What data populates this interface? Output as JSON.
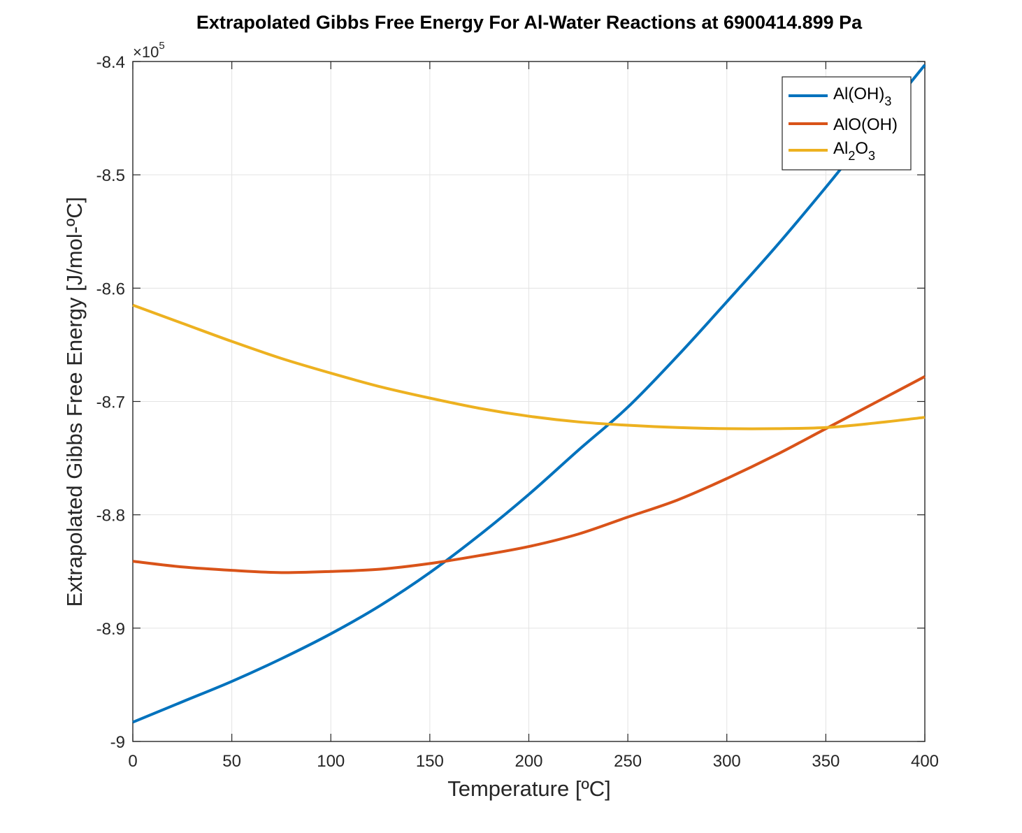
{
  "chart_data": {
    "type": "line",
    "title": "Extrapolated Gibbs Free Energy For Al-Water Reactions at 6900414.899 Pa",
    "xlabel": "Temperature [ºC]",
    "ylabel": "Extrapolated Gibbs Free Energy [J/mol-ºC]",
    "y_exponent_label": "×10",
    "y_exponent_power": "5",
    "xlim": [
      0,
      400
    ],
    "ylim": [
      -900000,
      -840000
    ],
    "x_ticks": [
      0,
      50,
      100,
      150,
      200,
      250,
      300,
      350,
      400
    ],
    "x_tick_labels": [
      "0",
      "50",
      "100",
      "150",
      "200",
      "250",
      "300",
      "350",
      "400"
    ],
    "y_ticks": [
      -900000,
      -890000,
      -880000,
      -870000,
      -860000,
      -850000,
      -840000
    ],
    "y_tick_labels": [
      "-9",
      "-8.9",
      "-8.8",
      "-8.7",
      "-8.6",
      "-8.5",
      "-8.4"
    ],
    "grid": true,
    "legend_position": "top-right",
    "x": [
      0,
      25,
      50,
      75,
      100,
      125,
      150,
      175,
      200,
      225,
      250,
      275,
      300,
      325,
      350,
      375,
      400
    ],
    "series": [
      {
        "name": "Al(OH)3",
        "legend_main": "Al(OH)",
        "legend_sub": "3",
        "color": "#0072BD",
        "values": [
          -898300,
          -896500,
          -894700,
          -892700,
          -890500,
          -888000,
          -885100,
          -881800,
          -878200,
          -874300,
          -870500,
          -866000,
          -861200,
          -856300,
          -851100,
          -845700,
          -840300
        ]
      },
      {
        "name": "AlO(OH)",
        "legend_main": "AlO(OH)",
        "color": "#D95319",
        "values": [
          -884100,
          -884600,
          -884900,
          -885100,
          -885000,
          -884800,
          -884300,
          -883600,
          -882800,
          -881700,
          -880200,
          -878700,
          -876800,
          -874700,
          -872400,
          -870100,
          -867800
        ]
      },
      {
        "name": "Al2O3",
        "legend_main": "Al",
        "legend_sub1": "2",
        "legend_mid": "O",
        "legend_sub2": "3",
        "color": "#EDB120",
        "values": [
          -861500,
          -863100,
          -864700,
          -866200,
          -867500,
          -868700,
          -869700,
          -870600,
          -871300,
          -871800,
          -872100,
          -872300,
          -872400,
          -872400,
          -872300,
          -871900,
          -871400
        ]
      }
    ]
  }
}
